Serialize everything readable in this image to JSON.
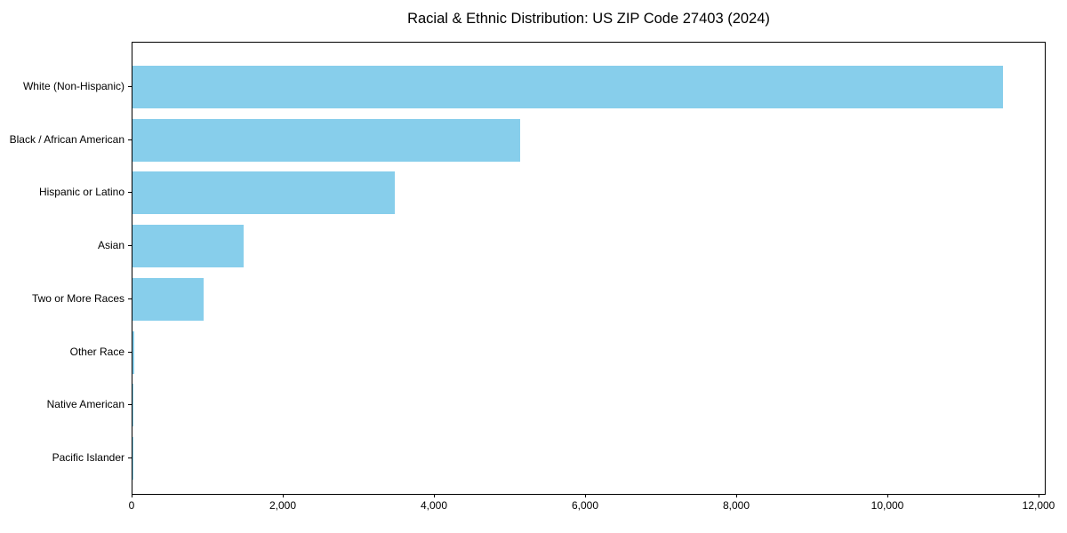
{
  "chart_data": {
    "type": "bar",
    "orientation": "horizontal",
    "title": "Racial & Ethnic Distribution: US ZIP Code 27403 (2024)",
    "categories": [
      "White (Non-Hispanic)",
      "Black / African American",
      "Hispanic or Latino",
      "Asian",
      "Two or More Races",
      "Other Race",
      "Native American",
      "Pacific Islander"
    ],
    "values": [
      11520,
      5130,
      3470,
      1470,
      940,
      18,
      8,
      4
    ],
    "xlabel": "",
    "ylabel": "",
    "xlim": [
      0,
      12094
    ],
    "xticks": [
      0,
      2000,
      4000,
      6000,
      8000,
      10000,
      12000
    ],
    "xtick_labels": [
      "0",
      "2,000",
      "4,000",
      "6,000",
      "8,000",
      "10,000",
      "12,000"
    ],
    "bar_color": "#87CEEB",
    "background_color": "#ffffff",
    "text_color": "#000000",
    "grid": false,
    "legend": "none",
    "first_category_position": "top"
  }
}
